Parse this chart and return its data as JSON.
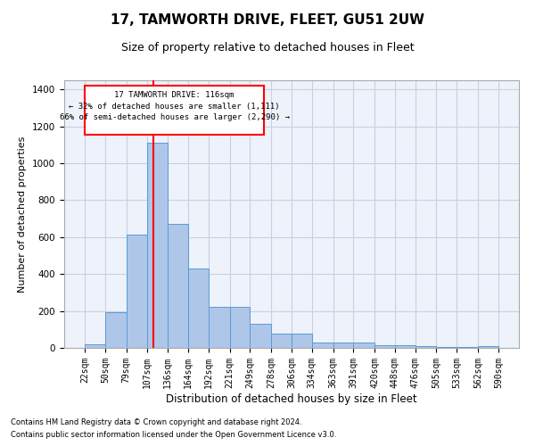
{
  "title": "17, TAMWORTH DRIVE, FLEET, GU51 2UW",
  "subtitle": "Size of property relative to detached houses in Fleet",
  "xlabel": "Distribution of detached houses by size in Fleet",
  "ylabel": "Number of detached properties",
  "footnote1": "Contains HM Land Registry data © Crown copyright and database right 2024.",
  "footnote2": "Contains public sector information licensed under the Open Government Licence v3.0.",
  "annotation_line1": "17 TAMWORTH DRIVE: 116sqm",
  "annotation_line2": "← 32% of detached houses are smaller (1,111)",
  "annotation_line3": "66% of semi-detached houses are larger (2,290) →",
  "bar_color": "#aec6e8",
  "bar_edge_color": "#5b9bd5",
  "redline_x": 116,
  "bin_edges": [
    22,
    50,
    79,
    107,
    136,
    164,
    192,
    221,
    249,
    278,
    306,
    334,
    363,
    391,
    420,
    448,
    476,
    505,
    533,
    562,
    590
  ],
  "bar_heights": [
    20,
    195,
    615,
    1110,
    670,
    430,
    220,
    220,
    130,
    75,
    75,
    30,
    30,
    30,
    15,
    15,
    8,
    5,
    5,
    10
  ],
  "ylim": [
    0,
    1450
  ],
  "yticks": [
    0,
    200,
    400,
    600,
    800,
    1000,
    1200,
    1400
  ],
  "bg_color": "#eef2fa",
  "grid_color": "#c8d0e0",
  "title_fontsize": 11,
  "subtitle_fontsize": 9,
  "axis_label_fontsize": 8,
  "tick_fontsize": 7,
  "footnote_fontsize": 6
}
